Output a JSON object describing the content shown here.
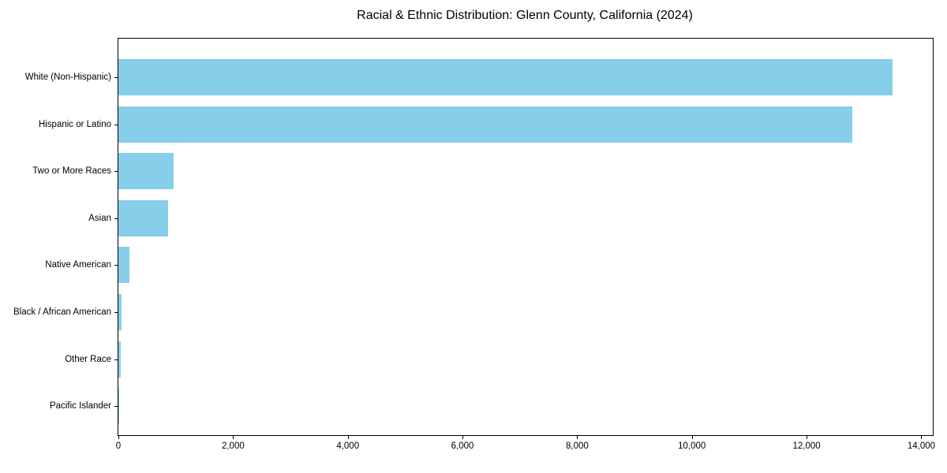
{
  "chart_data": {
    "type": "bar",
    "orientation": "horizontal",
    "title": "Racial & Ethnic Distribution: Glenn County, California (2024)",
    "categories": [
      "White (Non-Hispanic)",
      "Hispanic or Latino",
      "Two or More Races",
      "Asian",
      "Native American",
      "Black / African American",
      "Other Race",
      "Pacific Islander"
    ],
    "values": [
      13500,
      12800,
      970,
      860,
      190,
      60,
      45,
      15
    ],
    "xlabel": "",
    "ylabel": "",
    "xlim": [
      0,
      14200
    ],
    "x_ticks": [
      0,
      2000,
      4000,
      6000,
      8000,
      10000,
      12000,
      14000
    ],
    "x_tick_labels": [
      "0",
      "2,000",
      "4,000",
      "6,000",
      "8,000",
      "10,000",
      "12,000",
      "14,000"
    ],
    "grid": false,
    "legend": "none",
    "bar_color": "#87CEEB"
  },
  "colors": {
    "bar": "#87CEEB",
    "axis": "#000000",
    "background": "#FFFFFF",
    "text": "#000000"
  },
  "layout_hints": {
    "bars_sorted": "descending, largest at top",
    "spines": "full box"
  }
}
